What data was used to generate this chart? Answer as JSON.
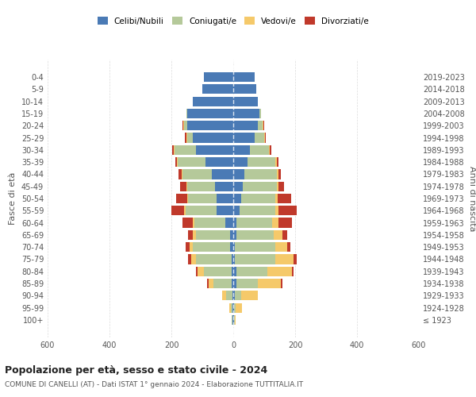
{
  "age_groups": [
    "100+",
    "95-99",
    "90-94",
    "85-89",
    "80-84",
    "75-79",
    "70-74",
    "65-69",
    "60-64",
    "55-59",
    "50-54",
    "45-49",
    "40-44",
    "35-39",
    "30-34",
    "25-29",
    "20-24",
    "15-19",
    "10-14",
    "5-9",
    "0-4"
  ],
  "birth_years": [
    "≤ 1923",
    "1924-1928",
    "1929-1933",
    "1934-1938",
    "1939-1943",
    "1944-1948",
    "1949-1953",
    "1954-1958",
    "1959-1963",
    "1964-1968",
    "1969-1973",
    "1974-1978",
    "1979-1983",
    "1984-1988",
    "1989-1993",
    "1994-1998",
    "1999-2003",
    "2004-2008",
    "2009-2013",
    "2014-2018",
    "2019-2023"
  ],
  "colors": {
    "celibi": "#4a7ab5",
    "coniugati": "#b5c99a",
    "vedovi": "#f5c96a",
    "divorziati": "#c0392b"
  },
  "males": {
    "celibi": [
      2,
      2,
      2,
      5,
      5,
      5,
      10,
      10,
      25,
      55,
      55,
      60,
      70,
      90,
      120,
      130,
      150,
      150,
      130,
      100,
      95
    ],
    "coniugati": [
      2,
      5,
      20,
      60,
      90,
      115,
      120,
      110,
      100,
      100,
      90,
      90,
      95,
      90,
      70,
      20,
      10,
      2,
      0,
      0,
      0
    ],
    "vedovi": [
      2,
      5,
      15,
      15,
      20,
      15,
      10,
      10,
      5,
      5,
      5,
      2,
      2,
      2,
      2,
      2,
      2,
      0,
      0,
      0,
      0
    ],
    "divorziati": [
      0,
      0,
      0,
      5,
      5,
      10,
      15,
      15,
      35,
      40,
      35,
      20,
      10,
      5,
      5,
      5,
      2,
      0,
      0,
      0,
      0
    ]
  },
  "females": {
    "celibi": [
      2,
      2,
      5,
      10,
      10,
      5,
      5,
      10,
      10,
      20,
      25,
      30,
      35,
      45,
      55,
      70,
      80,
      85,
      80,
      75,
      70
    ],
    "coniugati": [
      2,
      5,
      20,
      70,
      100,
      130,
      130,
      120,
      115,
      115,
      110,
      110,
      105,
      90,
      60,
      30,
      15,
      5,
      0,
      0,
      0
    ],
    "vedovi": [
      3,
      20,
      55,
      75,
      80,
      60,
      40,
      30,
      20,
      10,
      8,
      5,
      5,
      5,
      3,
      2,
      2,
      0,
      0,
      0,
      0
    ],
    "divorziati": [
      0,
      0,
      0,
      5,
      5,
      10,
      10,
      15,
      45,
      60,
      45,
      20,
      10,
      5,
      5,
      2,
      2,
      0,
      0,
      0,
      0
    ]
  },
  "title": "Popolazione per età, sesso e stato civile - 2024",
  "subtitle": "COMUNE DI CANELLI (AT) - Dati ISTAT 1° gennaio 2024 - Elaborazione TUTTITALIA.IT",
  "ylabel_left": "Fasce di età",
  "ylabel_right": "Anni di nascita",
  "legend_labels": [
    "Celibi/Nubili",
    "Coniugati/e",
    "Vedovi/e",
    "Divorziati/e"
  ],
  "xlim": 600,
  "background_color": "#ffffff",
  "grid_color": "#cccccc"
}
